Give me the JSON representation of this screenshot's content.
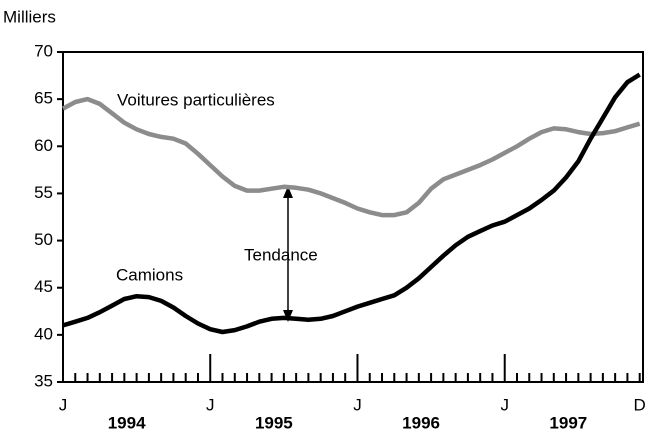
{
  "chart_data": {
    "type": "line",
    "y_label": "Milliers",
    "categories": [
      "J",
      null,
      null,
      null,
      null,
      null,
      null,
      null,
      null,
      null,
      null,
      null,
      "J",
      null,
      null,
      null,
      null,
      null,
      null,
      null,
      null,
      null,
      null,
      null,
      "J",
      null,
      null,
      null,
      null,
      null,
      null,
      null,
      null,
      null,
      null,
      null,
      "J",
      null,
      null,
      null,
      null,
      null,
      null,
      null,
      null,
      null,
      null,
      "D"
    ],
    "year_labels": [
      "1994",
      "1995",
      "1996",
      "1997"
    ],
    "series": [
      {
        "name": "Voitures particulières",
        "color": "#8c8c8c",
        "values": [
          64.0,
          64.7,
          65.0,
          64.5,
          63.5,
          62.5,
          61.8,
          61.3,
          61.0,
          60.8,
          60.3,
          59.2,
          58.0,
          56.8,
          55.8,
          55.3,
          55.3,
          55.5,
          55.7,
          55.6,
          55.4,
          55.0,
          54.5,
          54.0,
          53.4,
          53.0,
          52.7,
          52.7,
          53.0,
          54.0,
          55.5,
          56.5,
          57.0,
          57.5,
          58.0,
          58.6,
          59.3,
          60.0,
          60.8,
          61.5,
          61.9,
          61.8,
          61.5,
          61.3,
          61.4,
          61.6,
          62.0,
          62.4
        ]
      },
      {
        "name": "Camions",
        "color": "#000000",
        "values": [
          41.0,
          41.4,
          41.8,
          42.4,
          43.1,
          43.8,
          44.1,
          44.0,
          43.6,
          42.9,
          42.0,
          41.2,
          40.6,
          40.3,
          40.5,
          40.9,
          41.4,
          41.7,
          41.8,
          41.7,
          41.6,
          41.7,
          42.0,
          42.5,
          43.0,
          43.4,
          43.8,
          44.2,
          45.0,
          46.0,
          47.2,
          48.4,
          49.5,
          50.4,
          51.0,
          51.6,
          52.0,
          52.7,
          53.4,
          54.3,
          55.3,
          56.7,
          58.4,
          60.8,
          63.0,
          65.2,
          66.8,
          67.6
        ]
      }
    ],
    "annotation": "Tendance",
    "ylim": [
      35,
      70
    ],
    "yticks": [
      35,
      40,
      45,
      50,
      55,
      60,
      65,
      70
    ]
  }
}
